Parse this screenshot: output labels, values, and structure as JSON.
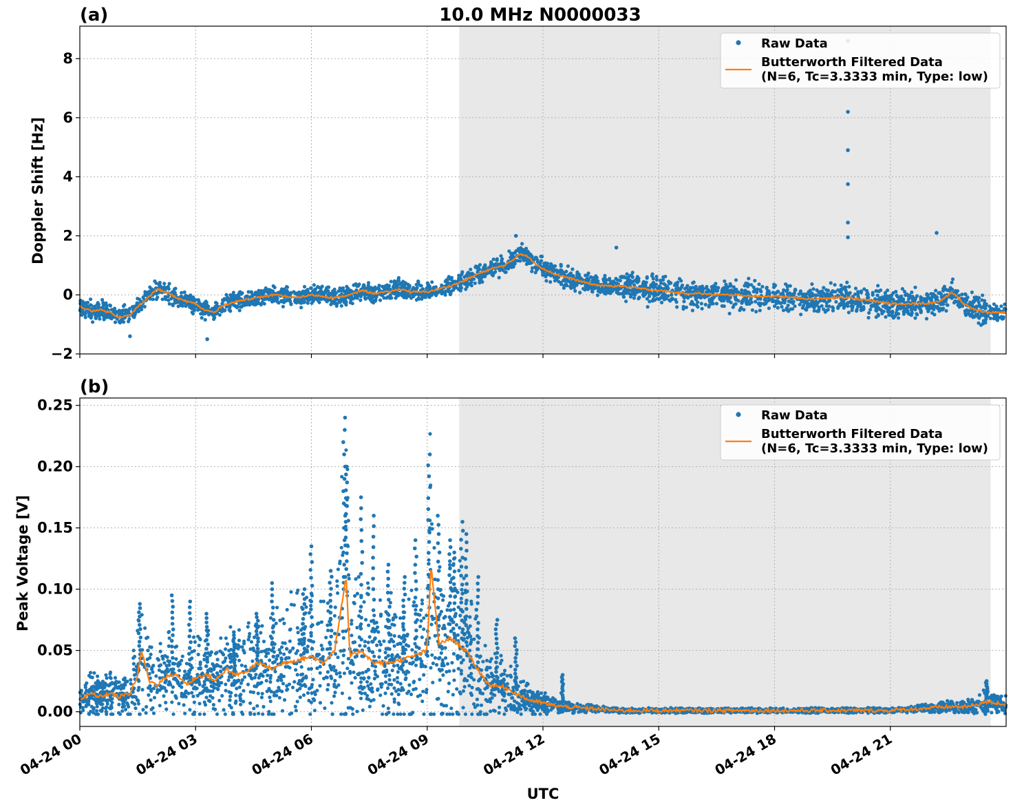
{
  "figure": {
    "title": "10.0 MHz N0000033",
    "xlabel": "UTC"
  },
  "legend": {
    "raw_label": "Raw Data",
    "filtered_label_line1": "Butterworth Filtered Data",
    "filtered_label_line2": "(N=6, Tc=3.3333 min, Type: low)"
  },
  "colors": {
    "raw": "#1f77b4",
    "filtered": "#ff7f0e",
    "shade": "#e8e8e8",
    "grid": "#b0b0b0"
  },
  "chart_data": [
    {
      "type": "scatter",
      "panel_label": "(a)",
      "title": "10.0 MHz N0000033",
      "ylabel": "Doppler Shift [Hz]",
      "xlabel": "",
      "xlim_hours": [
        0,
        24
      ],
      "ylim": [
        -2,
        9.1
      ],
      "yticks": [
        -2,
        0,
        2,
        4,
        6,
        8
      ],
      "ytick_labels": [
        "−2",
        "0",
        "2",
        "4",
        "6",
        "8"
      ],
      "xticks_hours": [
        0,
        3,
        6,
        9,
        12,
        15,
        18,
        21
      ],
      "shaded_region_hours": [
        9.83,
        23.6
      ],
      "grid": true,
      "legend_position": "upper right",
      "series": [
        {
          "name": "Butterworth Filtered Data",
          "kind": "line",
          "x_hours": [
            0,
            0.3,
            0.5,
            0.8,
            1.0,
            1.3,
            1.5,
            1.8,
            2.0,
            2.3,
            2.5,
            2.7,
            3.0,
            3.2,
            3.5,
            3.7,
            4.0,
            4.3,
            4.6,
            5.0,
            5.3,
            5.6,
            6.0,
            6.3,
            6.6,
            7.0,
            7.3,
            7.6,
            8.0,
            8.3,
            8.6,
            9.0,
            9.3,
            9.6,
            9.8,
            10.0,
            10.3,
            10.6,
            11.0,
            11.2,
            11.4,
            11.6,
            11.8,
            12.0,
            12.3,
            12.6,
            13.0,
            13.3,
            13.6,
            14.0,
            14.3,
            14.6,
            15.0,
            15.3,
            15.6,
            16.0,
            16.5,
            17.0,
            17.5,
            18.0,
            18.5,
            19.0,
            19.5,
            19.9,
            20.2,
            20.5,
            21.0,
            21.5,
            22.0,
            22.3,
            22.6,
            22.9,
            23.2,
            23.5,
            24.0
          ],
          "y": [
            -0.4,
            -0.55,
            -0.5,
            -0.6,
            -0.75,
            -0.7,
            -0.4,
            -0.05,
            0.2,
            0.05,
            -0.1,
            -0.2,
            -0.3,
            -0.5,
            -0.6,
            -0.35,
            -0.25,
            -0.15,
            -0.1,
            0.0,
            -0.05,
            -0.1,
            0.0,
            -0.05,
            -0.1,
            0.0,
            0.15,
            0.05,
            0.1,
            0.2,
            0.1,
            0.1,
            0.2,
            0.3,
            0.4,
            0.5,
            0.7,
            0.85,
            1.0,
            1.15,
            1.4,
            1.3,
            1.05,
            0.9,
            0.7,
            0.6,
            0.45,
            0.35,
            0.3,
            0.3,
            0.25,
            0.2,
            0.15,
            0.1,
            0.05,
            0.05,
            0.0,
            0.0,
            -0.05,
            -0.05,
            -0.1,
            -0.15,
            -0.1,
            -0.1,
            -0.15,
            -0.2,
            -0.3,
            -0.3,
            -0.3,
            -0.2,
            0.1,
            -0.3,
            -0.5,
            -0.6,
            -0.6
          ]
        },
        {
          "name": "Raw Data",
          "kind": "scatter",
          "spread_hz": 0.3,
          "outliers_x_hours": [
            19.9,
            19.9,
            19.9,
            19.9,
            19.9,
            19.9,
            22.2,
            13.9,
            11.3,
            3.3,
            1.3
          ],
          "outliers_y": [
            8.6,
            6.2,
            4.9,
            3.75,
            2.45,
            1.95,
            2.1,
            1.6,
            2.0,
            -1.5,
            -1.4
          ]
        }
      ]
    },
    {
      "type": "scatter",
      "panel_label": "(b)",
      "ylabel": "Peak Voltage [V]",
      "xlabel": "UTC",
      "xlim_hours": [
        0,
        24
      ],
      "ylim": [
        -0.012,
        0.256
      ],
      "yticks": [
        0.0,
        0.05,
        0.1,
        0.15,
        0.2,
        0.25
      ],
      "ytick_labels": [
        "0.00",
        "0.05",
        "0.10",
        "0.15",
        "0.20",
        "0.25"
      ],
      "xticks_hours": [
        0,
        3,
        6,
        9,
        12,
        15,
        18,
        21
      ],
      "xtick_labels": [
        "04-24 00",
        "04-24 03",
        "04-24 06",
        "04-24 09",
        "04-24 12",
        "04-24 15",
        "04-24 18",
        "04-24 21"
      ],
      "shaded_region_hours": [
        9.83,
        23.6
      ],
      "grid": true,
      "legend_position": "upper right",
      "series": [
        {
          "name": "Butterworth Filtered Data",
          "kind": "line",
          "x_hours": [
            0,
            0.3,
            0.5,
            0.8,
            1.0,
            1.3,
            1.5,
            1.6,
            1.8,
            2.0,
            2.3,
            2.5,
            2.8,
            3.0,
            3.3,
            3.5,
            3.8,
            4.0,
            4.3,
            4.6,
            5.0,
            5.3,
            5.6,
            6.0,
            6.3,
            6.6,
            6.9,
            7.0,
            7.3,
            7.6,
            8.0,
            8.3,
            8.6,
            9.0,
            9.1,
            9.3,
            9.6,
            9.8,
            10.0,
            10.3,
            10.6,
            11.0,
            11.3,
            11.6,
            12.0,
            12.3,
            12.6,
            13.0,
            13.5,
            14.0,
            14.5,
            15.0,
            16.0,
            17.0,
            18.0,
            19.0,
            20.0,
            21.0,
            22.0,
            22.5,
            23.0,
            23.5,
            24.0
          ],
          "y": [
            0.01,
            0.015,
            0.012,
            0.015,
            0.012,
            0.015,
            0.03,
            0.05,
            0.025,
            0.022,
            0.03,
            0.03,
            0.022,
            0.028,
            0.03,
            0.025,
            0.035,
            0.03,
            0.032,
            0.04,
            0.035,
            0.04,
            0.042,
            0.045,
            0.04,
            0.05,
            0.11,
            0.045,
            0.05,
            0.04,
            0.04,
            0.042,
            0.045,
            0.05,
            0.12,
            0.055,
            0.06,
            0.055,
            0.05,
            0.035,
            0.022,
            0.02,
            0.015,
            0.01,
            0.007,
            0.005,
            0.004,
            0.003,
            0.002,
            0.001,
            0.001,
            0.001,
            0.001,
            0.001,
            0.001,
            0.001,
            0.001,
            0.001,
            0.003,
            0.004,
            0.004,
            0.008,
            0.006
          ]
        },
        {
          "name": "Raw Data",
          "kind": "scatter",
          "peaks_x_hours": [
            1.55,
            2.4,
            2.85,
            3.3,
            4.0,
            4.6,
            5.0,
            5.8,
            6.0,
            6.5,
            6.85,
            6.9,
            7.3,
            7.6,
            8.0,
            8.4,
            8.7,
            9.05,
            9.3,
            9.6,
            9.7,
            9.9,
            10.0,
            10.3,
            10.8,
            11.3,
            12.5,
            23.5
          ],
          "peaks_y": [
            0.088,
            0.095,
            0.09,
            0.08,
            0.065,
            0.08,
            0.105,
            0.1,
            0.135,
            0.115,
            0.24,
            0.2,
            0.175,
            0.16,
            0.12,
            0.11,
            0.14,
            0.21,
            0.16,
            0.14,
            0.13,
            0.155,
            0.145,
            0.11,
            0.075,
            0.06,
            0.03,
            0.025
          ]
        }
      ]
    }
  ]
}
